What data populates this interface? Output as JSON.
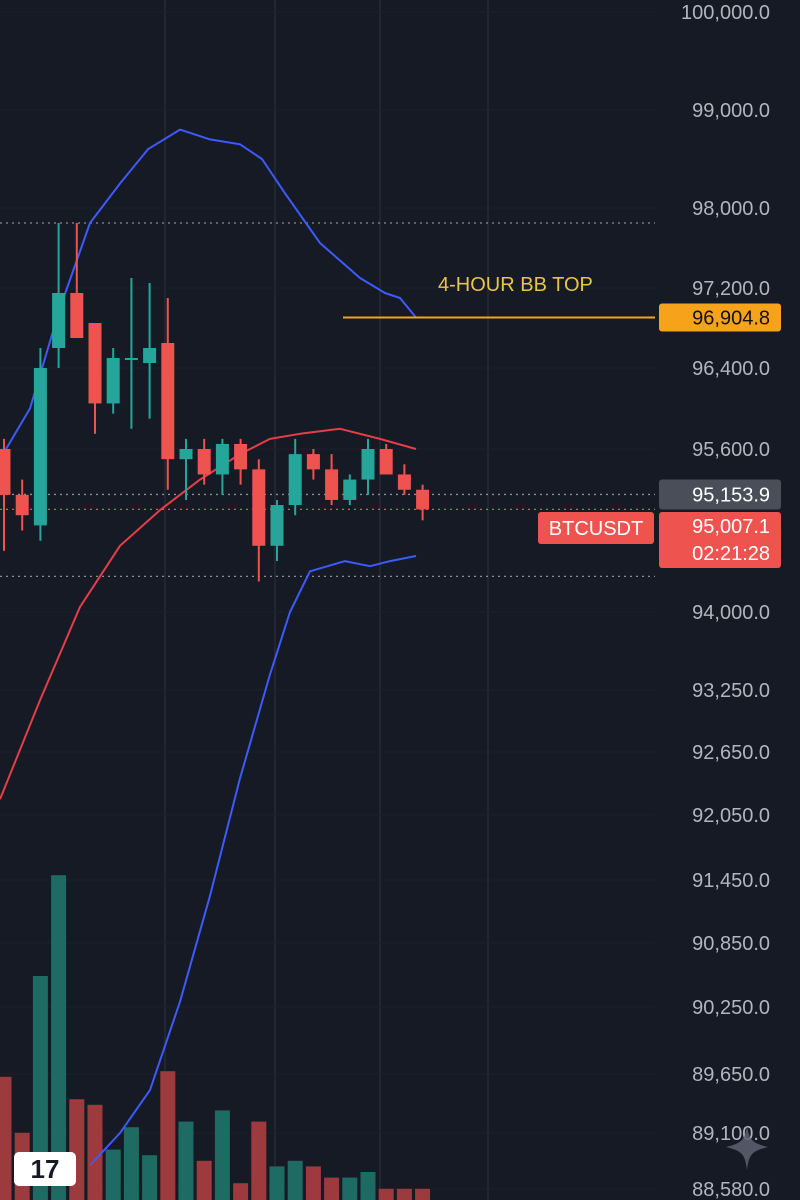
{
  "chart_data": {
    "type": "candlestick",
    "symbol": "BTCUSDT",
    "y_axis_ticks": [
      "100,000.0",
      "99,000.0",
      "98,000.0",
      "97,200.0",
      "96,400.0",
      "95,600.0",
      "94,000.0",
      "93,250.0",
      "92,650.0",
      "92,050.0",
      "91,450.0",
      "90,850.0",
      "90,250.0",
      "89,650.0",
      "89,100.0",
      "88,580.0"
    ],
    "ylim": [
      88580,
      100000
    ],
    "candles": [
      {
        "o": 95600,
        "h": 95700,
        "l": 94600,
        "c": 95150
      },
      {
        "o": 95150,
        "h": 95300,
        "l": 94800,
        "c": 94950
      },
      {
        "o": 94850,
        "h": 96600,
        "l": 94700,
        "c": 96400
      },
      {
        "o": 96600,
        "h": 97850,
        "l": 96400,
        "c": 97150
      },
      {
        "o": 97150,
        "h": 97850,
        "l": 96700,
        "c": 96700
      },
      {
        "o": 96850,
        "h": 96850,
        "l": 95750,
        "c": 96050
      },
      {
        "o": 96050,
        "h": 96600,
        "l": 95950,
        "c": 96500
      },
      {
        "o": 96500,
        "h": 97300,
        "l": 95800,
        "c": 96500
      },
      {
        "o": 96450,
        "h": 97250,
        "l": 95900,
        "c": 96600
      },
      {
        "o": 96650,
        "h": 97100,
        "l": 95200,
        "c": 95500
      },
      {
        "o": 95500,
        "h": 95700,
        "l": 95100,
        "c": 95600
      },
      {
        "o": 95600,
        "h": 95700,
        "l": 95250,
        "c": 95350
      },
      {
        "o": 95350,
        "h": 95700,
        "l": 95150,
        "c": 95650
      },
      {
        "o": 95650,
        "h": 95700,
        "l": 95250,
        "c": 95400
      },
      {
        "o": 95400,
        "h": 95500,
        "l": 94300,
        "c": 94650
      },
      {
        "o": 94650,
        "h": 95100,
        "l": 94500,
        "c": 95050
      },
      {
        "o": 95050,
        "h": 95700,
        "l": 94950,
        "c": 95550
      },
      {
        "o": 95550,
        "h": 95600,
        "l": 95300,
        "c": 95400
      },
      {
        "o": 95400,
        "h": 95550,
        "l": 95050,
        "c": 95100
      },
      {
        "o": 95100,
        "h": 95350,
        "l": 95050,
        "c": 95300
      },
      {
        "o": 95300,
        "h": 95700,
        "l": 95150,
        "c": 95600
      },
      {
        "o": 95600,
        "h": 95650,
        "l": 95350,
        "c": 95350
      },
      {
        "o": 95350,
        "h": 95450,
        "l": 95150,
        "c": 95200
      },
      {
        "o": 95200,
        "h": 95250,
        "l": 94900,
        "c": 95007
      }
    ],
    "bb_upper": [
      95500,
      96000,
      97000,
      97850,
      98250,
      98600,
      98800,
      98700,
      98650,
      98500,
      98150,
      97650,
      97300,
      97150,
      97100,
      96904.8
    ],
    "bb_middle": [
      92200,
      93150,
      94050,
      94650,
      95000,
      95300,
      95550,
      95700,
      95750,
      95800,
      95700,
      95600
    ],
    "bb_lower": [
      88800,
      89100,
      89500,
      90300,
      91300,
      92400,
      93400,
      94000,
      94400,
      94500,
      94450,
      94500,
      94550
    ],
    "volume": [
      0.22,
      0.12,
      0.4,
      0.58,
      0.18,
      0.17,
      0.09,
      0.13,
      0.08,
      0.23,
      0.14,
      0.07,
      0.16,
      0.03,
      0.14,
      0.06,
      0.07,
      0.06,
      0.04,
      0.04,
      0.05,
      0.02,
      0.02,
      0.02
    ],
    "annotation": {
      "label": "4-HOUR BB TOP",
      "value": 96904.8,
      "value_text": "96,904.8"
    },
    "horizontal_levels": [
      97850,
      95153.9,
      95007.1,
      94350
    ],
    "price_badges": {
      "hover_value": "95,153.9",
      "last_price": "95,007.1",
      "countdown": "02:21:28",
      "symbol_badge": "BTCUSDT"
    },
    "colors": {
      "bg": "#161a25",
      "up": "#26a69a",
      "down": "#ef5350",
      "bb_band": "#3d5afe",
      "bb_mid": "#e53e48",
      "annotation": "#f7a21b",
      "label_yellow": "#e8c547",
      "grid": "#262a36"
    }
  },
  "logo": {
    "text": "17",
    "icon": "tradingview-logo"
  },
  "watermark": {
    "icon": "sparkle-icon"
  }
}
